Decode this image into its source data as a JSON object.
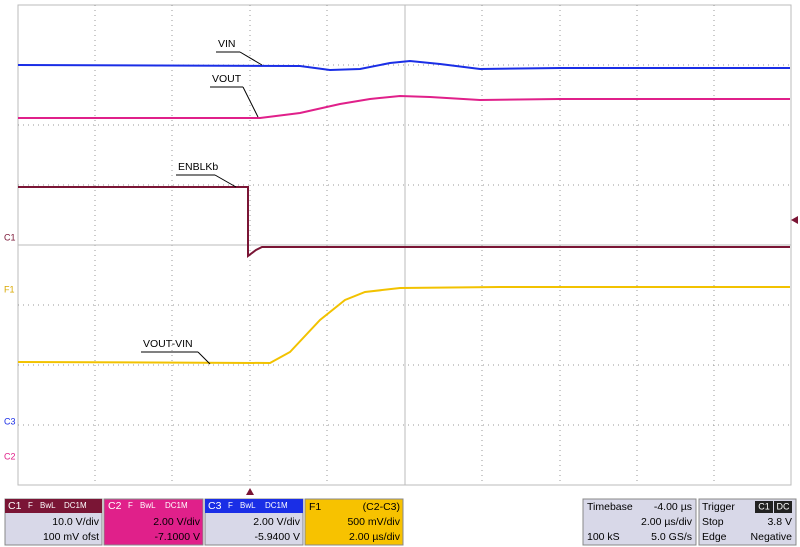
{
  "traces": [
    {
      "label": "VIN"
    },
    {
      "label": "VOUT"
    },
    {
      "label": "ENBLKb"
    },
    {
      "label": "VOUT-VIN"
    }
  ],
  "markers": [
    "C1",
    "F1",
    "C3",
    "C2"
  ],
  "channels": [
    {
      "name": "C1",
      "flags": [
        "F",
        "BwL",
        "DC1M"
      ],
      "lines": [
        "10.0 V/div",
        "100 mV ofst"
      ]
    },
    {
      "name": "C2",
      "flags": [
        "F",
        "BwL",
        "DC1M"
      ],
      "lines": [
        "2.00 V/div",
        "-7.1000 V"
      ]
    },
    {
      "name": "C3",
      "flags": [
        "F",
        "BwL",
        "DC1M"
      ],
      "lines": [
        "2.00 V/div",
        "-5.9400 V"
      ]
    }
  ],
  "function": {
    "name": "F1",
    "source": "(C2-C3)",
    "lines": [
      "500 mV/div",
      "2.00 µs/div"
    ]
  },
  "timebase": {
    "title": "Timebase",
    "offset": "-4.00 µs",
    "div": "2.00 µs/div",
    "samples": "100 kS",
    "rate": "5.0 GS/s"
  },
  "trigger": {
    "title": "Trigger",
    "source": "C1",
    "coupling": "DC",
    "mode": "Stop",
    "level": "3.8 V",
    "type": "Edge",
    "slope": "Negative"
  }
}
